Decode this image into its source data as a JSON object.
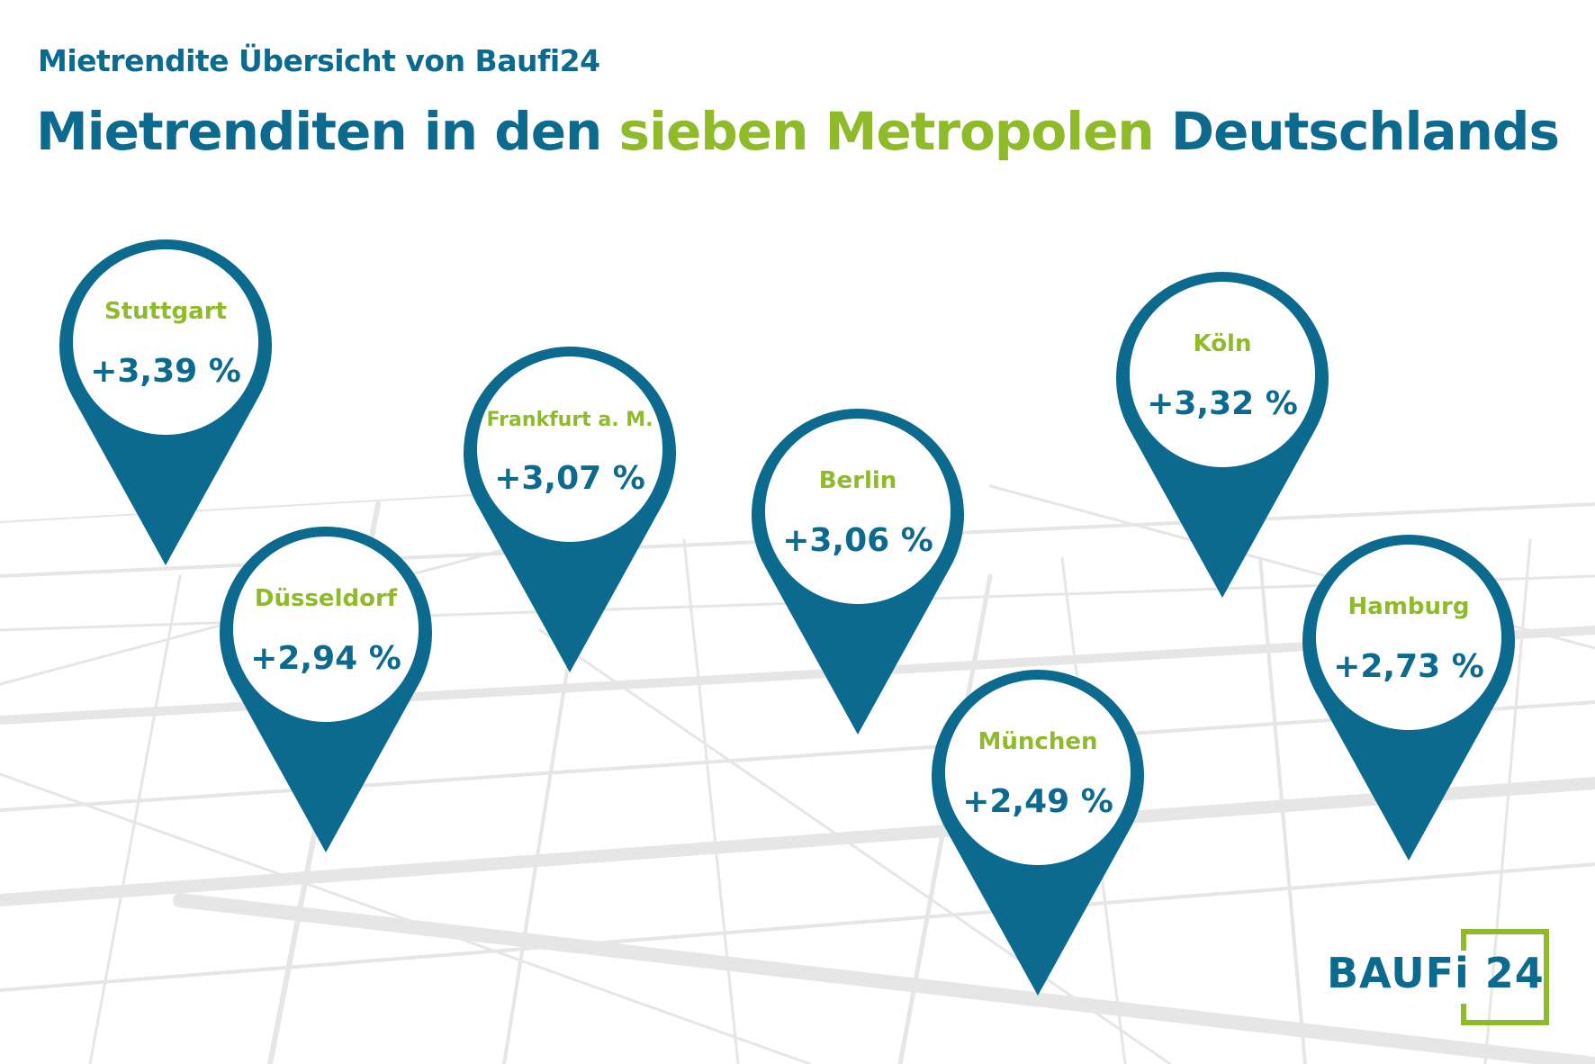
{
  "header": {
    "subtitle": "Mietrendite Übersicht von Baufi24",
    "title_part1": "Mietrenditen in den ",
    "title_highlight": "sieben Metropolen",
    "title_part2": " Deutschlands"
  },
  "colors": {
    "primary": "#0b6a8e",
    "accent": "#8fba2a",
    "map_lines": "#e6e6e6"
  },
  "pins": [
    {
      "city": "Stuttgart",
      "value": "+3,39 %"
    },
    {
      "city": "Düsseldorf",
      "value": "+2,94 %"
    },
    {
      "city": "Frankfurt a. M.",
      "value": "+3,07 %"
    },
    {
      "city": "Berlin",
      "value": "+3,06 %"
    },
    {
      "city": "München",
      "value": "+2,49 %"
    },
    {
      "city": "Köln",
      "value": "+3,32 %"
    },
    {
      "city": "Hamburg",
      "value": "+2,73 %"
    }
  ],
  "logo": {
    "text": "BAUFi 24"
  }
}
